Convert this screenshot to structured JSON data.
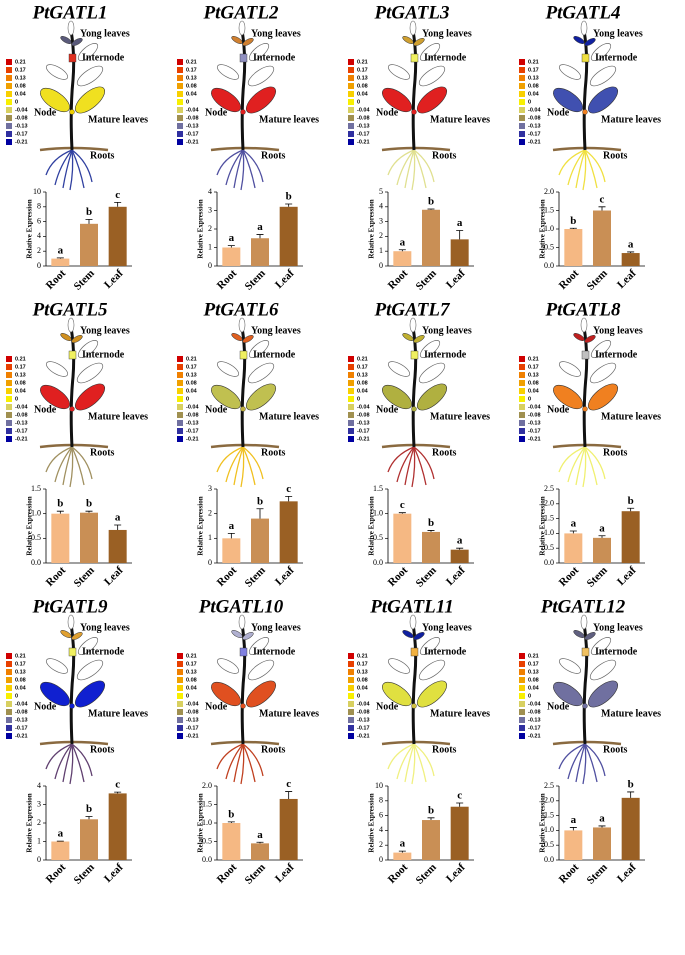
{
  "plant_key": {
    "scale": [
      0.21,
      0.17,
      0.13,
      0.08,
      0.04,
      0,
      -0.04,
      -0.08,
      -0.13,
      -0.17,
      -0.21
    ],
    "scale_colors": [
      "#d00000",
      "#e84000",
      "#f08000",
      "#f0a000",
      "#f8d000",
      "#f8f000",
      "#d8d060",
      "#a09050",
      "#7070a0",
      "#3030a0",
      "#0000a0"
    ],
    "organ_labels": {
      "yong_leaves": "Yong leaves",
      "internode": "Internode",
      "node": "Node",
      "mature_leaves": "Mature leaves",
      "roots": "Roots"
    }
  },
  "chart_data": [
    {
      "type": "bar",
      "title": "PtGATL1",
      "y_label": "Relative Expression",
      "categories": [
        "Root",
        "Stem",
        "Leaf"
      ],
      "values": [
        1.0,
        5.7,
        8.0
      ],
      "errors": [
        0.1,
        0.6,
        0.6
      ],
      "annotations": [
        "a",
        "b",
        "c"
      ],
      "colors": [
        "#f5b883",
        "#c98f55",
        "#9a6024"
      ],
      "ylim": [
        0,
        10
      ],
      "yticks": [
        0,
        2,
        4,
        6,
        8,
        10
      ],
      "plant": {
        "yong_leaves": "#5a5a7a",
        "internode": "#e03020",
        "node": "#f0d000",
        "mature_leaves": "#f0e020",
        "roots": "#3040a0"
      }
    },
    {
      "type": "bar",
      "title": "PtGATL2",
      "y_label": "Relative Expression",
      "categories": [
        "Root",
        "Stem",
        "Leaf"
      ],
      "values": [
        1.0,
        1.5,
        3.2
      ],
      "errors": [
        0.1,
        0.2,
        0.15
      ],
      "annotations": [
        "a",
        "a",
        "b"
      ],
      "colors": [
        "#f5b883",
        "#c98f55",
        "#9a6024"
      ],
      "ylim": [
        0,
        4
      ],
      "yticks": [
        0,
        1,
        2,
        3,
        4
      ],
      "plant": {
        "yong_leaves": "#d08030",
        "internode": "#9090c0",
        "node": "#e02020",
        "mature_leaves": "#e02020",
        "roots": "#5050a0"
      }
    },
    {
      "type": "bar",
      "title": "PtGATL3",
      "y_label": "Relative Expression",
      "categories": [
        "Root",
        "Stem",
        "Leaf"
      ],
      "values": [
        1.0,
        3.8,
        1.8
      ],
      "errors": [
        0.1,
        0.05,
        0.6
      ],
      "annotations": [
        "a",
        "b",
        "a"
      ],
      "colors": [
        "#f5b883",
        "#c98f55",
        "#9a6024"
      ],
      "ylim": [
        0,
        5
      ],
      "yticks": [
        0,
        1,
        2,
        3,
        4,
        5
      ],
      "plant": {
        "yong_leaves": "#d0a030",
        "internode": "#f0f060",
        "node": "#e02020",
        "mature_leaves": "#e02020",
        "roots": "#e0e090"
      }
    },
    {
      "type": "bar",
      "title": "PtGATL4",
      "y_label": "Relative Expression",
      "categories": [
        "Root",
        "Stem",
        "Leaf"
      ],
      "values": [
        1.0,
        1.5,
        0.35
      ],
      "errors": [
        0.02,
        0.1,
        0.03
      ],
      "annotations": [
        "b",
        "c",
        "a"
      ],
      "colors": [
        "#f5b883",
        "#c98f55",
        "#9a6024"
      ],
      "ylim": [
        0,
        2
      ],
      "yticks": [
        {
          "value": 0,
          "label": "0.0"
        },
        0.5,
        {
          "value": 1,
          "label": "1.0"
        },
        1.5,
        {
          "value": 2,
          "label": "2.0"
        }
      ],
      "plant": {
        "yong_leaves": "#1020a0",
        "internode": "#f0e040",
        "node": "#f08020",
        "mature_leaves": "#4050b0",
        "roots": "#f0e040"
      }
    },
    {
      "type": "bar",
      "title": "PtGATL5",
      "y_label": "Relative Expression",
      "categories": [
        "Root",
        "Stem",
        "Leaf"
      ],
      "values": [
        1.0,
        1.02,
        0.67
      ],
      "errors": [
        0.05,
        0.03,
        0.1
      ],
      "annotations": [
        "b",
        "b",
        "a"
      ],
      "colors": [
        "#f5b883",
        "#c98f55",
        "#9a6024"
      ],
      "ylim": [
        0,
        1.5
      ],
      "yticks": [
        {
          "value": 0,
          "label": "0.0"
        },
        0.5,
        {
          "value": 1,
          "label": "1.0"
        },
        1.5
      ],
      "plant": {
        "yong_leaves": "#d09020",
        "internode": "#f0f060",
        "node": "#e02020",
        "mature_leaves": "#e02020",
        "roots": "#a09060"
      }
    },
    {
      "type": "bar",
      "title": "PtGATL6",
      "y_label": "Relative Expression",
      "categories": [
        "Root",
        "Stem",
        "Leaf"
      ],
      "values": [
        1.0,
        1.8,
        2.5
      ],
      "errors": [
        0.2,
        0.4,
        0.2
      ],
      "annotations": [
        "a",
        "b",
        "c"
      ],
      "colors": [
        "#f5b883",
        "#c98f55",
        "#9a6024"
      ],
      "ylim": [
        0,
        3
      ],
      "yticks": [
        0,
        1,
        2,
        3
      ],
      "plant": {
        "yong_leaves": "#e06020",
        "internode": "#f0f060",
        "node": "#c0b040",
        "mature_leaves": "#c0c050",
        "roots": "#f0c020"
      }
    },
    {
      "type": "bar",
      "title": "PtGATL7",
      "y_label": "Relative Expression",
      "categories": [
        "Root",
        "Stem",
        "Leaf"
      ],
      "values": [
        1.0,
        0.63,
        0.27
      ],
      "errors": [
        0.02,
        0.03,
        0.03
      ],
      "annotations": [
        "c",
        "b",
        "a"
      ],
      "colors": [
        "#f5b883",
        "#c98f55",
        "#9a6024"
      ],
      "ylim": [
        0,
        1.5
      ],
      "yticks": [
        {
          "value": 0,
          "label": "0.0"
        },
        0.5,
        {
          "value": 1,
          "label": "1.0"
        },
        1.5
      ],
      "plant": {
        "yong_leaves": "#c0b030",
        "internode": "#f0f060",
        "node": "#b0b040",
        "mature_leaves": "#b0b040",
        "roots": "#b03030"
      }
    },
    {
      "type": "bar",
      "title": "PtGATL8",
      "y_label": "Relative Expression",
      "categories": [
        "Root",
        "Stem",
        "Leaf"
      ],
      "values": [
        1.0,
        0.85,
        1.75
      ],
      "errors": [
        0.08,
        0.07,
        0.1
      ],
      "annotations": [
        "a",
        "a",
        "b"
      ],
      "colors": [
        "#f5b883",
        "#c98f55",
        "#9a6024"
      ],
      "ylim": [
        0,
        2.5
      ],
      "yticks": [
        {
          "value": 0,
          "label": "0.0"
        },
        0.5,
        {
          "value": 1,
          "label": "1.0"
        },
        1.5,
        {
          "value": 2,
          "label": "2.0"
        },
        2.5
      ],
      "plant": {
        "yong_leaves": "#c02020",
        "internode": "#c0c0c0",
        "node": "#f08020",
        "mature_leaves": "#f08020",
        "roots": "#f0f070"
      }
    },
    {
      "type": "bar",
      "title": "PtGATL9",
      "y_label": "Relative Expression",
      "categories": [
        "Root",
        "Stem",
        "Leaf"
      ],
      "values": [
        1.0,
        2.2,
        3.6
      ],
      "errors": [
        0.02,
        0.15,
        0.07
      ],
      "annotations": [
        "a",
        "b",
        "c"
      ],
      "colors": [
        "#f5b883",
        "#c98f55",
        "#9a6024"
      ],
      "ylim": [
        0,
        4
      ],
      "yticks": [
        0,
        1,
        2,
        3,
        4
      ],
      "plant": {
        "yong_leaves": "#e0a030",
        "internode": "#f0f060",
        "node": "#1020d0",
        "mature_leaves": "#1020d0",
        "roots": "#604070"
      }
    },
    {
      "type": "bar",
      "title": "PtGATL10",
      "y_label": "Relative Expression",
      "categories": [
        "Root",
        "Stem",
        "Leaf"
      ],
      "values": [
        1.0,
        0.45,
        1.65
      ],
      "errors": [
        0.03,
        0.03,
        0.2
      ],
      "annotations": [
        "b",
        "a",
        "c"
      ],
      "colors": [
        "#f5b883",
        "#c98f55",
        "#9a6024"
      ],
      "ylim": [
        0,
        2
      ],
      "yticks": [
        {
          "value": 0,
          "label": "0.0"
        },
        0.5,
        {
          "value": 1,
          "label": "1.0"
        },
        1.5,
        {
          "value": 2,
          "label": "2.0"
        }
      ],
      "plant": {
        "yong_leaves": "#b0b0d0",
        "internode": "#8080e0",
        "node": "#e05020",
        "mature_leaves": "#e05020",
        "roots": "#c04020"
      }
    },
    {
      "type": "bar",
      "title": "PtGATL11",
      "y_label": "Relative Expression",
      "categories": [
        "Root",
        "Stem",
        "Leaf"
      ],
      "values": [
        1.0,
        5.4,
        7.2
      ],
      "errors": [
        0.2,
        0.3,
        0.5
      ],
      "annotations": [
        "a",
        "b",
        "c"
      ],
      "colors": [
        "#f5b883",
        "#c98f55",
        "#9a6024"
      ],
      "ylim": [
        0,
        10
      ],
      "yticks": [
        0,
        2,
        4,
        6,
        8,
        10
      ],
      "plant": {
        "yong_leaves": "#1020a0",
        "internode": "#f0b040",
        "node": "#d0c040",
        "mature_leaves": "#e0e040",
        "roots": "#f0f080"
      }
    },
    {
      "type": "bar",
      "title": "PtGATL12",
      "y_label": "Relative Expression",
      "categories": [
        "Root",
        "Stem",
        "Leaf"
      ],
      "values": [
        1.0,
        1.1,
        2.1
      ],
      "errors": [
        0.1,
        0.05,
        0.2
      ],
      "annotations": [
        "a",
        "a",
        "b"
      ],
      "colors": [
        "#f5b883",
        "#c98f55",
        "#9a6024"
      ],
      "ylim": [
        0,
        2.5
      ],
      "yticks": [
        {
          "value": 0,
          "label": "0.0"
        },
        0.5,
        {
          "value": 1,
          "label": "1.0"
        },
        1.5,
        {
          "value": 2,
          "label": "2.0"
        },
        2.5
      ],
      "plant": {
        "yong_leaves": "#606080",
        "internode": "#f0c060",
        "node": "#7070a0",
        "mature_leaves": "#7070a0",
        "roots": "#5050a0"
      }
    }
  ]
}
